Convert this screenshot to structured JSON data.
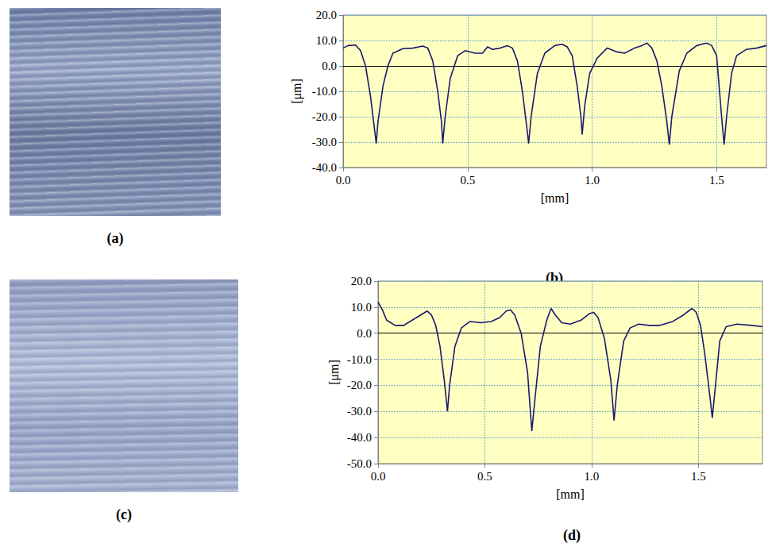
{
  "images": [
    {
      "label": "(a)"
    },
    {
      "label": "(c)"
    }
  ],
  "chart_data": [
    {
      "type": "line",
      "panel": "(b)",
      "xlabel": "[mm]",
      "ylabel": "[μm]",
      "grid": true,
      "xlim": [
        0,
        1.7
      ],
      "ylim": [
        -40,
        20
      ],
      "xticks": [
        {
          "value": 0,
          "label": "0.0"
        },
        {
          "value": 0.5,
          "label": "0.5"
        },
        {
          "value": 1,
          "label": "1.0"
        },
        {
          "value": 1.5,
          "label": "1.5"
        }
      ],
      "yticks": [
        {
          "value": -40,
          "label": "-40.0"
        },
        {
          "value": -30,
          "label": "-30.0"
        },
        {
          "value": -20,
          "label": "-20.0"
        },
        {
          "value": -10,
          "label": "-10.0"
        },
        {
          "value": 0,
          "label": "0.0"
        },
        {
          "value": 10,
          "label": "10.0"
        },
        {
          "value": 20,
          "label": "20.0"
        }
      ],
      "x": [
        0,
        0.02,
        0.05,
        0.07,
        0.09,
        0.11,
        0.125,
        0.133,
        0.14,
        0.16,
        0.18,
        0.2,
        0.24,
        0.28,
        0.32,
        0.34,
        0.36,
        0.38,
        0.395,
        0.4,
        0.41,
        0.43,
        0.46,
        0.49,
        0.53,
        0.56,
        0.58,
        0.6,
        0.63,
        0.66,
        0.68,
        0.7,
        0.72,
        0.735,
        0.745,
        0.755,
        0.78,
        0.81,
        0.85,
        0.88,
        0.9,
        0.92,
        0.94,
        0.955,
        0.96,
        0.97,
        0.99,
        1.02,
        1.06,
        1.1,
        1.13,
        1.17,
        1.2,
        1.22,
        1.24,
        1.26,
        1.28,
        1.3,
        1.31,
        1.32,
        1.35,
        1.38,
        1.42,
        1.46,
        1.48,
        1.5,
        1.51,
        1.52,
        1.53,
        1.54,
        1.56,
        1.58,
        1.62,
        1.66,
        1.7
      ],
      "series": [
        {
          "color": "#1a1a6e",
          "values": [
            7,
            8,
            8.2,
            6,
            0,
            -12,
            -24,
            -30.5,
            -22,
            -8,
            0,
            5,
            6.8,
            7,
            7.8,
            7,
            2,
            -10,
            -22,
            -30.5,
            -20,
            -5,
            4,
            6,
            5,
            5,
            7.5,
            6.5,
            7,
            8,
            7,
            2,
            -10,
            -22,
            -30.5,
            -20,
            -3,
            5,
            8,
            8.5,
            7.5,
            4,
            -8,
            -20,
            -27,
            -16,
            -3,
            3,
            7,
            5.5,
            5,
            7,
            8,
            9,
            7,
            2,
            -8,
            -22,
            -31,
            -20,
            -2,
            5,
            8,
            9,
            8,
            4,
            -8,
            -20,
            -31,
            -20,
            -3,
            4,
            6.5,
            7,
            8
          ]
        }
      ]
    },
    {
      "type": "line",
      "panel": "(d)",
      "xlabel": "[mm]",
      "ylabel": "[μm]",
      "grid": true,
      "xlim": [
        0,
        1.8
      ],
      "ylim": [
        -50,
        20
      ],
      "xticks": [
        {
          "value": 0,
          "label": "0.0"
        },
        {
          "value": 0.5,
          "label": "0.5"
        },
        {
          "value": 1,
          "label": "1.0"
        },
        {
          "value": 1.5,
          "label": "1.5"
        }
      ],
      "yticks": [
        {
          "value": -50,
          "label": "-50.0"
        },
        {
          "value": -40,
          "label": "-40.0"
        },
        {
          "value": -30,
          "label": "-30.0"
        },
        {
          "value": -20,
          "label": "-20.0"
        },
        {
          "value": -10,
          "label": "-10.0"
        },
        {
          "value": 0,
          "label": "0.0"
        },
        {
          "value": 10,
          "label": "10.0"
        },
        {
          "value": 20,
          "label": "20.0"
        }
      ],
      "x": [
        0,
        0.02,
        0.04,
        0.08,
        0.12,
        0.16,
        0.2,
        0.23,
        0.25,
        0.27,
        0.29,
        0.31,
        0.325,
        0.335,
        0.36,
        0.39,
        0.43,
        0.48,
        0.53,
        0.57,
        0.6,
        0.62,
        0.64,
        0.67,
        0.7,
        0.72,
        0.735,
        0.76,
        0.79,
        0.81,
        0.83,
        0.86,
        0.9,
        0.95,
        0.99,
        1.01,
        1.03,
        1.06,
        1.09,
        1.105,
        1.12,
        1.15,
        1.18,
        1.22,
        1.27,
        1.32,
        1.38,
        1.43,
        1.47,
        1.49,
        1.51,
        1.53,
        1.555,
        1.565,
        1.58,
        1.6,
        1.63,
        1.68,
        1.75,
        1.8
      ],
      "series": [
        {
          "color": "#1a1a6e",
          "values": [
            12,
            9,
            5,
            3,
            3,
            5,
            7,
            8.5,
            7,
            3,
            -5,
            -18,
            -30,
            -20,
            -5,
            2,
            4.5,
            4,
            4.5,
            6,
            8.5,
            9,
            7,
            0,
            -15,
            -37.5,
            -25,
            -5,
            5,
            9.5,
            7,
            4,
            3.5,
            5,
            7.5,
            8,
            6,
            -2,
            -18,
            -33.5,
            -20,
            -3,
            2,
            3.5,
            3,
            3,
            4.5,
            7,
            9.5,
            8,
            3,
            -8,
            -25,
            -32.5,
            -20,
            -3,
            2.5,
            3.5,
            3,
            2.5
          ]
        }
      ]
    }
  ]
}
